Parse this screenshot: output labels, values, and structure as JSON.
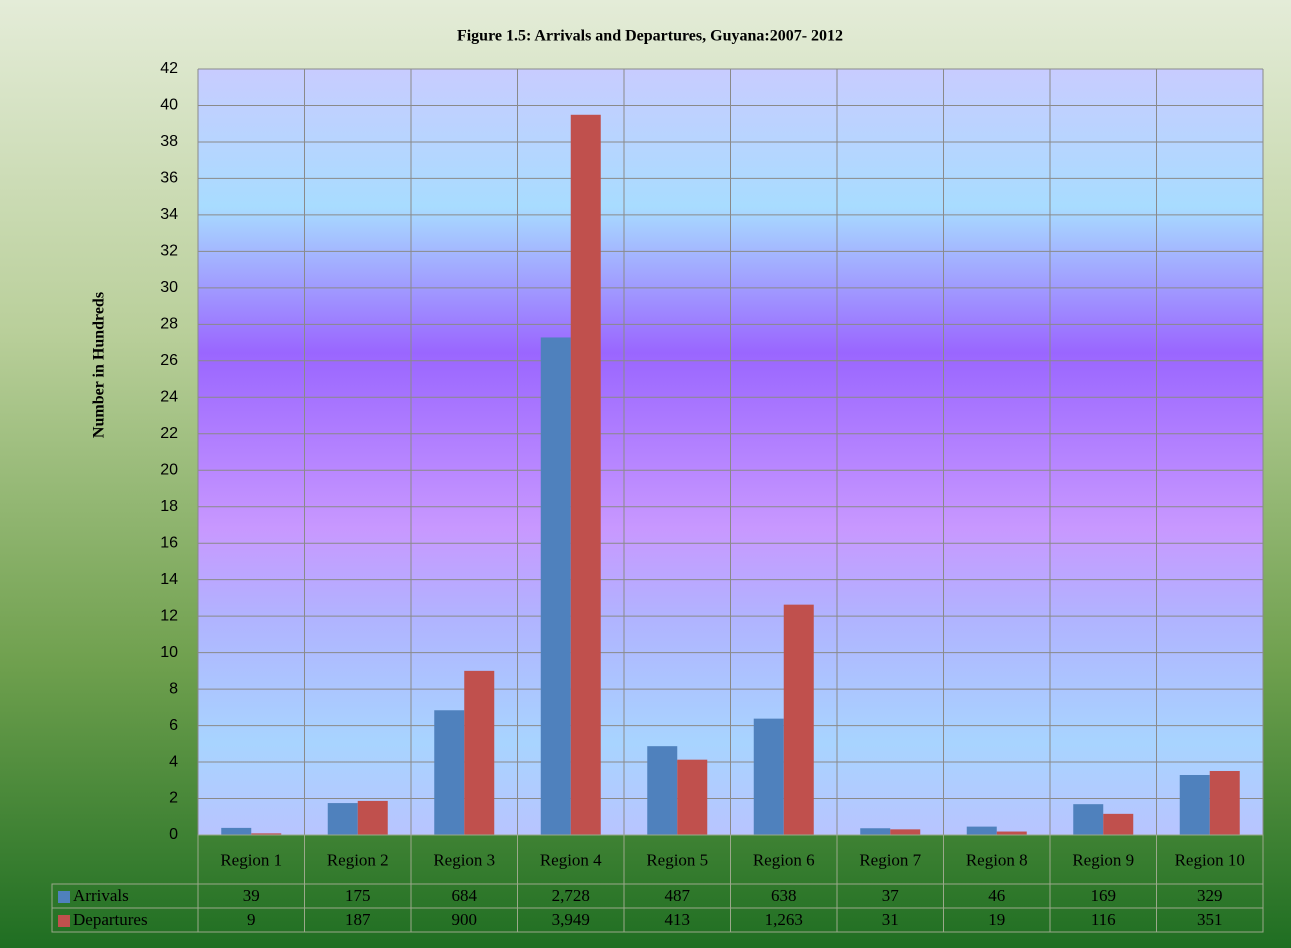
{
  "chart_data": {
    "type": "bar",
    "title": "Figure 1.5: Arrivals and Departures, Guyana:2007- 2012",
    "y_label": "Number in Hundreds",
    "categories": [
      "Region 1",
      "Region 2",
      "Region 3",
      "Region 4",
      "Region 5",
      "Region 6",
      "Region 7",
      "Region 8",
      "Region 9",
      "Region 10"
    ],
    "series": [
      {
        "name": "Arrivals",
        "color": "#4f81bd",
        "values": [
          0.39,
          1.75,
          6.84,
          27.28,
          4.87,
          6.38,
          0.37,
          0.46,
          1.69,
          3.29
        ],
        "value_labels": [
          "39",
          "175",
          "684",
          "2,728",
          "487",
          "638",
          "37",
          "46",
          "169",
          "329"
        ]
      },
      {
        "name": "Departures",
        "color": "#c0504d",
        "values": [
          0.09,
          1.87,
          9.0,
          39.49,
          4.13,
          12.63,
          0.31,
          0.19,
          1.16,
          3.51
        ],
        "value_labels": [
          "9",
          "187",
          "900",
          "3,949",
          "413",
          "1,263",
          "31",
          "19",
          "116",
          "351"
        ]
      }
    ],
    "ylim": [
      0,
      42
    ],
    "yticks": [
      0,
      2,
      4,
      6,
      8,
      10,
      12,
      14,
      16,
      18,
      20,
      22,
      24,
      26,
      28,
      30,
      32,
      34,
      36,
      38,
      40,
      42
    ],
    "grid": true,
    "legend": "table"
  }
}
